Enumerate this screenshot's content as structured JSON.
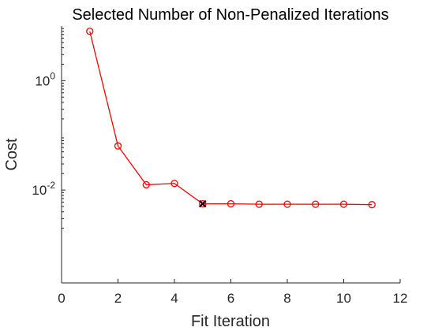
{
  "chart_data": {
    "type": "line",
    "title": "Selected Number of Non-Penalized Iterations",
    "xlabel": "Fit Iteration",
    "ylabel": "Cost",
    "xlim": [
      0,
      12
    ],
    "ylim": [
      0.0002,
      10
    ],
    "yscale": "log",
    "x_ticks": [
      0,
      2,
      4,
      6,
      8,
      10,
      12
    ],
    "y_ticks": [
      {
        "value": 1,
        "base": "10",
        "exp": "0"
      },
      {
        "value": 0.01,
        "base": "10",
        "exp": "-2"
      }
    ],
    "grid": false,
    "series": [
      {
        "color": "#ff0000",
        "marker": "circle",
        "x": [
          1,
          2,
          3,
          4,
          5,
          6,
          7,
          8,
          9,
          10,
          11
        ],
        "y": [
          8.0,
          0.064,
          0.0125,
          0.0132,
          0.0056,
          0.0056,
          0.0055,
          0.0055,
          0.0055,
          0.0055,
          0.0054
        ]
      }
    ],
    "selected_point": {
      "x": 5,
      "y": 0.0056,
      "marker": "x",
      "color": "#000000"
    }
  }
}
